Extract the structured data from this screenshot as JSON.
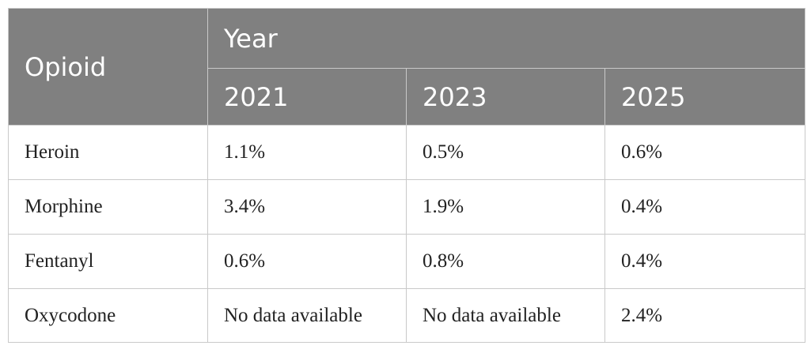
{
  "table": {
    "header": {
      "opioid_label": "Opioid",
      "year_label": "Year",
      "years": [
        "2021",
        "2023",
        "2025"
      ]
    },
    "rows": [
      {
        "opioid": "Heroin",
        "values": [
          "1.1%",
          "0.5%",
          "0.6%"
        ]
      },
      {
        "opioid": "Morphine",
        "values": [
          "3.4%",
          "1.9%",
          "0.4%"
        ]
      },
      {
        "opioid": "Fentanyl",
        "values": [
          "0.6%",
          "0.8%",
          "0.4%"
        ]
      },
      {
        "opioid": "Oxycodone",
        "values": [
          "No data available",
          "No data available",
          "2.4%"
        ]
      }
    ],
    "colors": {
      "header_bg": "#808080",
      "header_text": "#ffffff",
      "border": "#c9c9c9"
    }
  }
}
